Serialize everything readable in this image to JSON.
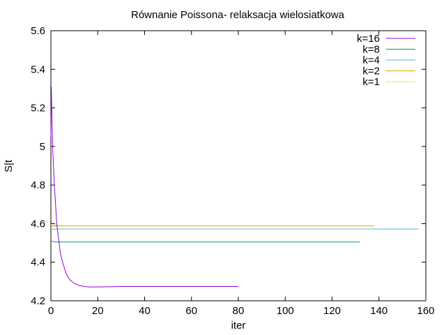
{
  "chart_data": {
    "type": "line",
    "title": "Równanie Poissona- relaksacja wielosiatkowa",
    "xlabel": "iter",
    "ylabel": "S|t",
    "xlim": [
      0,
      160
    ],
    "ylim": [
      4.2,
      5.6
    ],
    "xticks": [
      0,
      20,
      40,
      60,
      80,
      100,
      120,
      140,
      160
    ],
    "yticks": [
      4.2,
      4.4,
      4.6,
      4.8,
      5,
      5.2,
      5.4,
      5.6
    ],
    "xtick_labels": [
      "0",
      "20",
      "40",
      "60",
      "80",
      "100",
      "120",
      "140",
      "160"
    ],
    "ytick_labels": [
      "4.2",
      "4.4",
      "4.6",
      "4.8",
      "5",
      "5.2",
      "5.4",
      "5.6"
    ],
    "grid": false,
    "legend_position": "top-right",
    "series": [
      {
        "name": "k=16",
        "color": "#9400d3",
        "x": [
          0,
          0.2,
          0.5,
          0.8,
          1,
          1.5,
          2,
          2.5,
          3,
          3.5,
          4,
          5,
          6,
          7,
          8,
          9,
          10,
          12,
          14,
          16,
          18,
          20,
          25,
          30,
          40,
          50,
          60,
          70,
          80
        ],
        "y": [
          5.05,
          5.31,
          5.13,
          4.98,
          4.93,
          4.8,
          4.7,
          4.6,
          4.55,
          4.5,
          4.45,
          4.4,
          4.36,
          4.33,
          4.31,
          4.3,
          4.29,
          4.28,
          4.275,
          4.272,
          4.272,
          4.272,
          4.273,
          4.274,
          4.274,
          4.274,
          4.274,
          4.274,
          4.274
        ]
      },
      {
        "name": "k=8",
        "color": "#009e73",
        "x": [
          0,
          1,
          2,
          4,
          10,
          40,
          80,
          132
        ],
        "y": [
          4.51,
          4.507,
          4.505,
          4.505,
          4.505,
          4.505,
          4.505,
          4.505
        ]
      },
      {
        "name": "k=4",
        "color": "#56b4e9",
        "x": [
          0,
          1,
          3,
          10,
          60,
          157
        ],
        "y": [
          4.57,
          4.571,
          4.572,
          4.572,
          4.572,
          4.572
        ]
      },
      {
        "name": "k=2",
        "color": "#e69f00",
        "x": [
          0,
          2,
          5,
          40,
          100,
          138
        ],
        "y": [
          4.587,
          4.588,
          4.588,
          4.588,
          4.588,
          4.588
        ]
      },
      {
        "name": "k=1",
        "color": "#f0e442",
        "x": [
          0,
          1,
          3,
          5
        ],
        "y": [
          4.593,
          4.592,
          4.591,
          4.59
        ]
      }
    ]
  }
}
